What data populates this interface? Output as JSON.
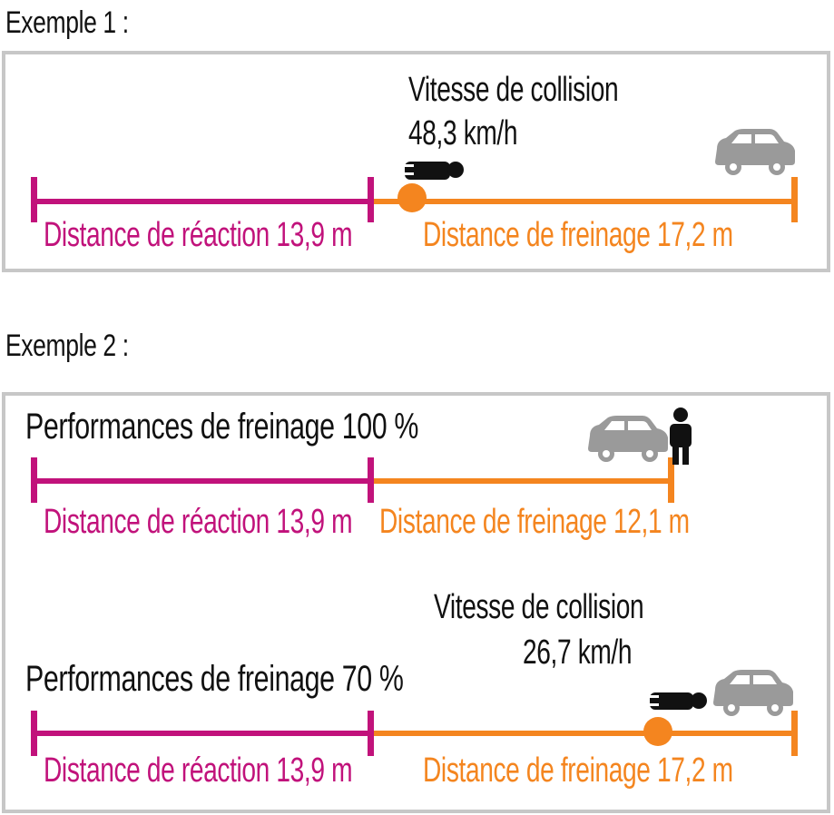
{
  "example1": {
    "heading": "Exemple 1 :",
    "collision_label": "Vitesse de collision",
    "collision_speed": "48,3 km/h",
    "reaction_label": "Distance de réaction 13,9 m",
    "braking_label": "Distance de freinage 17,2 m"
  },
  "example2": {
    "heading": "Exemple 2 :",
    "case_a": {
      "title": "Performances de freinage 100 %",
      "reaction_label": "Distance de réaction 13,9 m",
      "braking_label": "Distance de freinage 12,1 m"
    },
    "case_b": {
      "title": "Performances de freinage 70 %",
      "collision_label": "Vitesse de collision",
      "collision_speed": "26,7 km/h",
      "reaction_label": "Distance de réaction 13,9 m",
      "braking_label": "Distance de freinage 17,2 m"
    }
  },
  "colors": {
    "reaction": "#c1127b",
    "braking": "#f4851f",
    "car": "#9a9a9a",
    "pedestrian": "#111111",
    "frame": "#c7c7c7"
  },
  "icons": [
    "car-icon",
    "pedestrian-lying-icon",
    "pedestrian-standing-icon",
    "impact-dot-icon"
  ]
}
